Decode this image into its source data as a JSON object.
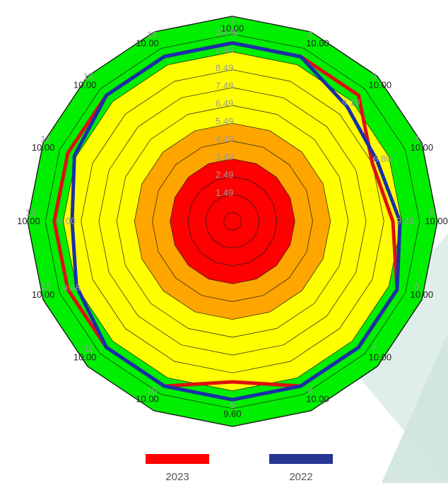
{
  "chart_data": {
    "type": "radar",
    "title": "",
    "axis_count": 16,
    "rlim": [
      0,
      11.5
    ],
    "ring_levels": [
      0,
      0.5,
      1.5,
      2.5,
      3.5,
      4.5,
      5.5,
      6.5,
      7.5,
      8.5,
      9.5,
      10.5,
      11.5
    ],
    "ring_labels": [
      "1.49",
      "2.49",
      "3.49",
      "4.49",
      "5.49",
      "6.49",
      "7.49",
      "8.49",
      "9.49",
      "10.49"
    ],
    "bands": [
      {
        "from": 0,
        "to": 3.5,
        "color": "#ff0000"
      },
      {
        "from": 3.5,
        "to": 5.5,
        "color": "#ffa500"
      },
      {
        "from": 5.5,
        "to": 9.5,
        "color": "#ffff00"
      },
      {
        "from": 9.5,
        "to": 11.5,
        "color": "#00ee00"
      }
    ],
    "axis_numbers": [
      "1",
      "2",
      "3",
      "4",
      "5",
      "6",
      "7",
      "8",
      "9",
      "10",
      "11",
      "12",
      "13",
      "14",
      "15",
      "16"
    ],
    "axis_value_labels": [
      "10.00",
      "10.00",
      "10.00",
      "10.00",
      "10.00",
      "10.00",
      "10.00",
      "10.00",
      "9.60",
      "10.00",
      "10.00",
      "10.00",
      "10.00",
      "10.00",
      "10.00",
      "10.00"
    ],
    "point_labels": [
      "9.10",
      "8.80",
      "9.40",
      "9.00",
      "9.48"
    ],
    "series": [
      {
        "name": "2023",
        "color": "#dd1111",
        "values": [
          10.0,
          10.0,
          10.0,
          8.5,
          9.0,
          10.0,
          10.0,
          10.0,
          9.0,
          10.0,
          10.0,
          10.0,
          10.0,
          10.0,
          10.0,
          10.0
        ]
      },
      {
        "name": "2022",
        "color": "#1a2fa8",
        "values": [
          10.0,
          10.0,
          9.1,
          8.8,
          9.4,
          10.0,
          10.0,
          10.0,
          10.0,
          10.0,
          10.0,
          9.48,
          9.0,
          9.6,
          10.0,
          10.0
        ]
      }
    ]
  },
  "legend": {
    "items": [
      {
        "label": "2023",
        "color": "#ff0000"
      },
      {
        "label": "2022",
        "color": "#283593"
      }
    ]
  }
}
